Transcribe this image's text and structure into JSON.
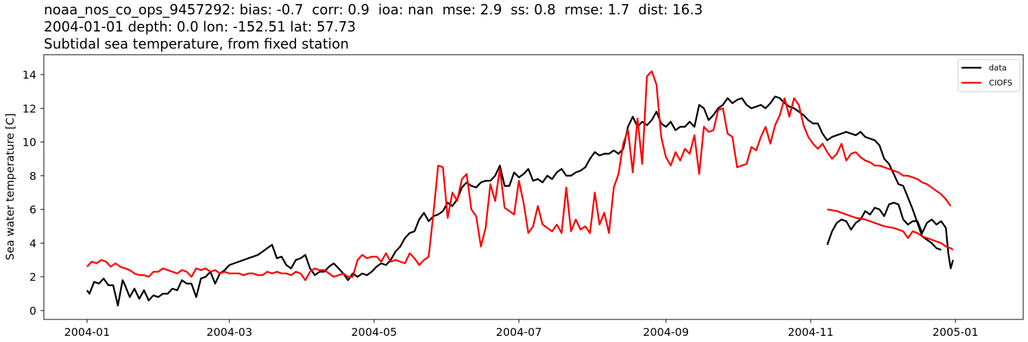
{
  "header": {
    "line1": "noaa_nos_co_ops_9457292: bias: -0.7  corr: 0.9  ioa: nan  mse: 2.9  ss: 0.8  rmse: 1.7  dist: 16.3",
    "line2": "2004-01-01 depth: 0.0 lon: -152.51 lat: 57.73",
    "line3": "Subtidal sea temperature, from fixed station"
  },
  "colors": {
    "data": "#000000",
    "model": "#ff0000",
    "axis": "#000000",
    "background": "#ffffff"
  },
  "chart_data": {
    "type": "line",
    "title": "noaa_nos_co_ops_9457292: bias: -0.7  corr: 0.9  ioa: nan  mse: 2.9  ss: 0.8  rmse: 1.7  dist: 16.3 / 2004-01-01 depth: 0.0 lon: -152.51 lat: 57.73 / Subtidal sea temperature, from fixed station",
    "xlabel": "",
    "ylabel": "Sea water temperature [C]",
    "x_unit": "day of year 2004 (0 = 2004-01-01)",
    "xlim_days": [
      -18.3,
      394.5
    ],
    "ylim": [
      -0.53,
      15.18
    ],
    "x_ticks": [
      {
        "day": 0,
        "label": "2004-01"
      },
      {
        "day": 60,
        "label": "2004-03"
      },
      {
        "day": 121,
        "label": "2004-05"
      },
      {
        "day": 182,
        "label": "2004-07"
      },
      {
        "day": 244,
        "label": "2004-09"
      },
      {
        "day": 305,
        "label": "2004-11"
      },
      {
        "day": 366,
        "label": "2005-01"
      }
    ],
    "y_ticks": [
      0,
      2,
      4,
      6,
      8,
      10,
      12,
      14
    ],
    "grid": false,
    "legend": {
      "position": "upper right",
      "entries": [
        "data",
        "CIOFS"
      ]
    },
    "series": [
      {
        "name": "data",
        "color": "#000000",
        "x_days": [
          0,
          1,
          3,
          5,
          7,
          9,
          11,
          13,
          15,
          16,
          18,
          20,
          22,
          24,
          26,
          28,
          30,
          32,
          34,
          36,
          38,
          40,
          42,
          44,
          46,
          48,
          50,
          52,
          54,
          56,
          58,
          60,
          62,
          64,
          66,
          68,
          70,
          72,
          74,
          76,
          78,
          80,
          82,
          84,
          86,
          88,
          90,
          92,
          94,
          96,
          98,
          100,
          102,
          104,
          106,
          108,
          110,
          112,
          114,
          116,
          118,
          120,
          122,
          124,
          126,
          128,
          130,
          132,
          134,
          136,
          138,
          140,
          142,
          144,
          146,
          148,
          150,
          152,
          154,
          156,
          158,
          160,
          162,
          164,
          166,
          168,
          170,
          172,
          174,
          176,
          178,
          180,
          182,
          184,
          186,
          188,
          190,
          192,
          194,
          196,
          198,
          200,
          202,
          204,
          206,
          208,
          210,
          212,
          214,
          216,
          218,
          220,
          222,
          224,
          226,
          228,
          230,
          232,
          234,
          236,
          238,
          240,
          242,
          244,
          246,
          248,
          250,
          252,
          254,
          256,
          258,
          260,
          262,
          264,
          266,
          268,
          270,
          272,
          274,
          276,
          278,
          280,
          282,
          284,
          286,
          288,
          290,
          292,
          294,
          296,
          298,
          300,
          302,
          304,
          306,
          308,
          310,
          312,
          314,
          316,
          318,
          320,
          322,
          324,
          326,
          328,
          330,
          332,
          334,
          336,
          338,
          340,
          342,
          344,
          346,
          348,
          350,
          352,
          354,
          356,
          358,
          360,
          362,
          364
        ],
        "values": [
          1.2,
          1.0,
          1.7,
          1.6,
          1.9,
          1.5,
          1.5,
          0.3,
          1.8,
          1.5,
          0.8,
          1.3,
          0.7,
          1.2,
          0.6,
          0.9,
          0.8,
          1.0,
          1.0,
          1.3,
          1.2,
          1.8,
          1.6,
          1.6,
          0.8,
          1.9,
          2.0,
          2.3,
          1.6,
          2.2,
          2.4,
          2.7,
          2.8,
          2.9,
          3.0,
          3.1,
          3.2,
          3.3,
          3.5,
          3.7,
          3.9,
          3.1,
          3.2,
          2.7,
          2.5,
          3.0,
          3.1,
          3.3,
          2.5,
          2.1,
          2.3,
          2.3,
          2.6,
          2.8,
          2.5,
          2.2,
          1.8,
          2.2,
          2.0,
          2.2,
          2.1,
          2.3,
          2.6,
          2.8,
          2.7,
          3.0,
          3.5,
          3.8,
          4.3,
          4.6,
          4.7,
          5.4,
          5.8,
          5.3,
          5.6,
          5.7,
          5.9,
          6.4,
          6.2,
          6.6,
          7.3,
          7.6,
          7.4,
          7.3,
          7.6,
          7.7,
          7.7,
          8.0,
          8.6,
          7.4,
          7.4,
          8.2,
          7.9,
          8.1,
          8.4,
          7.7,
          7.8,
          7.6,
          8.0,
          7.8,
          8.2,
          8.4,
          8.0,
          8.0,
          8.2,
          8.3,
          8.5,
          9.0,
          9.4,
          9.2,
          9.3,
          9.3,
          9.5,
          9.3,
          9.6,
          10.9,
          11.5,
          10.9,
          11.2,
          11.0,
          11.3,
          11.8,
          11.1,
          10.9,
          11.2,
          10.7,
          10.9,
          10.9,
          11.2,
          10.9,
          12.2,
          12.0,
          11.3,
          11.6,
          12.0,
          12.2,
          12.6,
          12.3,
          12.5,
          12.6,
          12.2,
          12.0,
          12.1,
          12.2,
          12.0,
          12.3,
          12.7,
          12.6,
          12.3,
          12.1,
          12.0,
          11.8,
          11.6,
          11.3,
          11.1,
          11.1,
          10.5,
          10.1,
          10.3,
          10.4,
          10.5,
          10.6,
          10.5,
          10.4,
          10.6,
          10.3,
          10.2,
          10.1,
          9.8,
          9.0,
          8.7,
          8.1,
          7.5,
          7.4,
          6.7,
          6.0,
          5.2,
          4.4,
          4.2,
          4.0,
          3.7,
          3.6
        ],
        "note": "tail (Nov-Dec) continues below"
      },
      {
        "name": "data_tail",
        "color": "#000000",
        "x_days": [
          312,
          314,
          316,
          318,
          320,
          322,
          324,
          326,
          328,
          330,
          332,
          334,
          336,
          338,
          340,
          342,
          344,
          346,
          348,
          350,
          352,
          354,
          356,
          358,
          360,
          362,
          363,
          364,
          365
        ],
        "values": [
          3.9,
          4.7,
          5.2,
          5.4,
          5.3,
          4.8,
          5.2,
          5.4,
          5.9,
          5.7,
          6.1,
          6.0,
          5.6,
          6.3,
          6.4,
          6.3,
          5.4,
          5.1,
          5.3,
          5.3,
          4.6,
          5.2,
          5.4,
          5.1,
          5.3,
          4.9,
          3.4,
          2.5,
          3.0
        ]
      },
      {
        "name": "CIOFS",
        "color": "#ff0000",
        "x_days": [
          0,
          2,
          4,
          6,
          8,
          10,
          12,
          14,
          16,
          18,
          20,
          22,
          24,
          26,
          28,
          30,
          32,
          34,
          36,
          38,
          40,
          42,
          44,
          46,
          48,
          50,
          52,
          54,
          56,
          58,
          60,
          62,
          64,
          66,
          68,
          70,
          72,
          74,
          76,
          78,
          80,
          82,
          84,
          86,
          88,
          90,
          92,
          94,
          96,
          98,
          100,
          102,
          104,
          106,
          108,
          110,
          112,
          114,
          116,
          118,
          120,
          122,
          124,
          126,
          128,
          130,
          132,
          134,
          136,
          138,
          140,
          142,
          144,
          146,
          148,
          150,
          152,
          154,
          156,
          158,
          160,
          162,
          164,
          166,
          168,
          170,
          172,
          174,
          176,
          178,
          180,
          182,
          184,
          186,
          188,
          190,
          192,
          194,
          196,
          198,
          200,
          202,
          204,
          206,
          208,
          210,
          212,
          214,
          216,
          218,
          220,
          222,
          224,
          226,
          228,
          230,
          232,
          234,
          236,
          238,
          240,
          242,
          244,
          246,
          248,
          250,
          252,
          254,
          256,
          258,
          260,
          262,
          264,
          266,
          268,
          270,
          272,
          274,
          276,
          278,
          280,
          282,
          284,
          286,
          288,
          290,
          292,
          294,
          296,
          298,
          300,
          302,
          304,
          306,
          308,
          310,
          312,
          314,
          316,
          318,
          320,
          322,
          324,
          326,
          328,
          330,
          332,
          334,
          336,
          338,
          340,
          342,
          344,
          346,
          348,
          350,
          352,
          354,
          356,
          358,
          360,
          362,
          364
        ],
        "values": [
          2.6,
          2.9,
          2.8,
          3.0,
          2.9,
          2.6,
          2.8,
          2.6,
          2.5,
          2.4,
          2.2,
          2.1,
          2.1,
          2.0,
          2.3,
          2.3,
          2.5,
          2.4,
          2.3,
          2.2,
          2.4,
          2.3,
          2.0,
          2.5,
          2.4,
          2.5,
          2.3,
          2.4,
          2.2,
          2.3,
          2.2,
          2.2,
          2.2,
          2.1,
          2.2,
          2.2,
          2.1,
          2.1,
          2.3,
          2.2,
          2.3,
          2.2,
          2.2,
          2.1,
          2.3,
          2.2,
          1.8,
          2.3,
          2.5,
          2.4,
          2.4,
          2.2,
          2.0,
          2.1,
          2.2,
          2.0,
          2.0,
          3.0,
          3.3,
          3.1,
          3.2,
          3.2,
          2.9,
          3.4,
          2.9,
          3.0,
          2.9,
          2.8,
          3.4,
          3.1,
          2.7,
          3.0,
          3.2,
          5.8,
          8.6,
          8.5,
          5.5,
          7.0,
          6.5,
          7.8,
          8.1,
          6.0,
          5.6,
          3.8,
          4.9,
          7.5,
          6.5,
          8.4,
          6.1,
          5.9,
          5.7,
          7.7,
          6.4,
          4.6,
          5.0,
          6.2,
          5.1,
          4.9,
          4.7,
          5.1,
          4.6,
          7.3,
          4.7,
          5.4,
          4.8,
          5.0,
          4.6,
          7.0,
          5.1,
          5.8,
          4.6,
          7.3,
          8.1,
          9.9,
          10.7,
          8.2,
          11.4,
          8.7,
          13.9,
          14.2,
          13.4,
          10.3,
          9.1,
          8.6,
          9.4,
          8.9,
          9.6,
          9.3,
          10.4,
          8.1,
          10.9,
          10.6,
          10.7,
          11.9,
          12.0,
          10.5,
          10.3,
          8.5,
          8.6,
          8.7,
          9.7,
          9.5,
          10.3,
          10.9,
          9.9,
          11.0,
          11.6,
          12.6,
          11.5,
          12.6,
          12.2,
          11.0,
          10.3,
          9.9,
          9.6,
          9.9,
          9.4,
          9.0,
          9.3,
          9.9,
          8.9,
          9.3,
          9.4,
          9.1,
          8.9,
          8.8,
          8.6,
          8.6,
          8.5,
          8.4,
          8.3,
          8.2,
          8.0,
          8.0,
          7.9,
          7.8,
          7.6,
          7.5,
          7.3,
          7.1,
          6.9,
          6.6,
          6.2
        ]
      },
      {
        "name": "CIOFS_tail",
        "color": "#ff0000",
        "x_days": [
          312,
          316,
          320,
          324,
          328,
          332,
          336,
          340,
          344,
          346,
          348,
          350,
          352,
          354,
          356,
          358,
          360,
          362,
          364,
          365
        ],
        "values": [
          6.0,
          5.9,
          5.7,
          5.5,
          5.4,
          5.2,
          5.0,
          4.9,
          4.7,
          4.3,
          4.7,
          4.6,
          4.4,
          4.3,
          4.2,
          4.1,
          4.0,
          3.8,
          3.7,
          3.6
        ]
      }
    ]
  },
  "axes": {
    "ylabel": "Sea water temperature [C]",
    "x_tick_labels": [
      "2004-01",
      "2004-03",
      "2004-05",
      "2004-07",
      "2004-09",
      "2004-11",
      "2005-01"
    ],
    "y_tick_labels": [
      "0",
      "2",
      "4",
      "6",
      "8",
      "10",
      "12",
      "14"
    ]
  },
  "legend": {
    "entries": [
      {
        "label": "data",
        "color": "#000000"
      },
      {
        "label": "CIOFS",
        "color": "#ff0000"
      }
    ]
  }
}
